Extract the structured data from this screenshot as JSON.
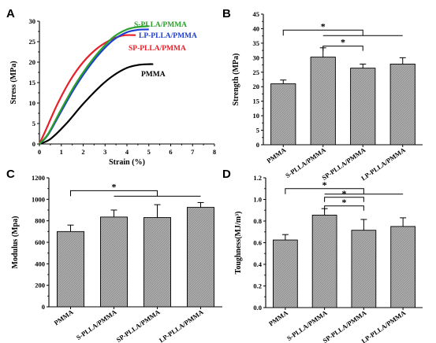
{
  "chart_data": [
    {
      "panel": "A",
      "type": "line",
      "xlabel": "Strain (%)",
      "ylabel": "Stress (MPa)",
      "xlim": [
        0,
        8
      ],
      "ylim": [
        0,
        30
      ],
      "xticks": [
        0,
        1,
        2,
        3,
        4,
        5,
        6,
        7,
        8
      ],
      "yticks": [
        0,
        5,
        10,
        15,
        20,
        25,
        30
      ],
      "series": [
        {
          "name": "S-PLLA/PMMA",
          "color": "#2ca02c",
          "x": [
            0,
            0.4,
            1.0,
            1.6,
            2.2,
            2.8,
            3.4,
            4.0,
            4.5,
            5.0
          ],
          "y": [
            0,
            2.5,
            8.5,
            14.2,
            19.0,
            23.0,
            26.2,
            28.0,
            28.6,
            28.8
          ]
        },
        {
          "name": "LP-PLLA/PMMA",
          "color": "#1f3fcf",
          "x": [
            0,
            0.4,
            1.0,
            1.6,
            2.2,
            2.8,
            3.4,
            4.0,
            4.5,
            5.0
          ],
          "y": [
            0,
            2.3,
            8.0,
            13.6,
            18.4,
            22.4,
            25.5,
            27.3,
            27.9,
            28.0
          ]
        },
        {
          "name": "SP-PLLA/PMMA",
          "color": "#e8202a",
          "x": [
            0,
            0.3,
            0.8,
            1.4,
            2.0,
            2.6,
            3.2,
            3.8,
            4.4
          ],
          "y": [
            0,
            3.5,
            9.5,
            15.5,
            20.0,
            23.2,
            25.3,
            26.5,
            26.6
          ]
        },
        {
          "name": "PMMA",
          "color": "#000000",
          "x": [
            0,
            0.5,
            1.2,
            2.0,
            2.8,
            3.4,
            4.0,
            4.5,
            5.0,
            5.2
          ],
          "y": [
            0,
            1.2,
            4.8,
            9.8,
            14.2,
            16.8,
            18.6,
            19.3,
            19.5,
            19.5
          ]
        }
      ]
    },
    {
      "panel": "B",
      "type": "bar",
      "ylabel": "Strength (MPa)",
      "ylim": [
        0,
        45
      ],
      "yticks": [
        0,
        5,
        10,
        15,
        20,
        25,
        30,
        35,
        40,
        45
      ],
      "categories": [
        "PMMA",
        "S-PLLA/PMMA",
        "SP-PLLA/PMMA",
        "LP-PLLA/PMMA"
      ],
      "values": [
        21.0,
        30.2,
        26.4,
        27.8
      ],
      "errors": [
        1.3,
        3.2,
        1.4,
        2.2
      ],
      "significance": [
        {
          "from": 0,
          "to": 3,
          "mid": 2,
          "level": 39.5,
          "label": "*"
        },
        {
          "from": 1,
          "to": 2,
          "level": 34.0,
          "label": "*"
        }
      ]
    },
    {
      "panel": "C",
      "type": "bar",
      "ylabel": "Modulus (Mpa)",
      "ylim": [
        0,
        1200
      ],
      "yticks": [
        0,
        200,
        400,
        600,
        800,
        1000,
        1200
      ],
      "categories": [
        "PMMA",
        "S-PLLA/PMMA",
        "SP-PLLA/PMMA",
        "LP-PLLA/PMMA"
      ],
      "values": [
        700,
        835,
        830,
        925
      ],
      "errors": [
        60,
        65,
        120,
        45
      ],
      "significance": [
        {
          "from": 0,
          "to": 3,
          "mid": 2,
          "level": 1080,
          "label": "*"
        }
      ]
    },
    {
      "panel": "D",
      "type": "bar",
      "ylabel": "Toughness(MJ/m³)",
      "ylim": [
        0,
        1.2
      ],
      "yticks": [
        0.0,
        0.2,
        0.4,
        0.6,
        0.8,
        1.0,
        1.2
      ],
      "categories": [
        "PMMA",
        "S-PLLA/PMMA",
        "SP-PLLA/PMMA",
        "LP-PLLA/PMMA"
      ],
      "values": [
        0.625,
        0.855,
        0.715,
        0.75
      ],
      "errors": [
        0.05,
        0.06,
        0.1,
        0.08
      ],
      "significance": [
        {
          "from": 0,
          "to": 3,
          "mid": 2,
          "level": 1.1,
          "label": "*"
        },
        {
          "from": 1,
          "to": 2,
          "level": 1.02,
          "label": "*"
        },
        {
          "from": 1,
          "to": 2,
          "level": 0.94,
          "label": "*"
        }
      ]
    }
  ]
}
